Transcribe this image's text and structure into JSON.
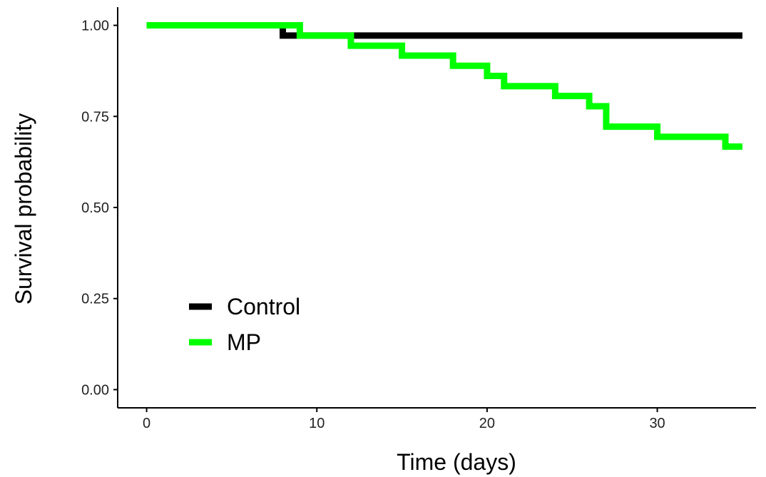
{
  "chart_data": {
    "type": "line",
    "title": "",
    "xlabel": "Time (days)",
    "ylabel": "Survival probability",
    "xlim": [
      -1.7,
      35.8
    ],
    "ylim": [
      -0.05,
      1.05
    ],
    "x_ticks": [
      0,
      10,
      20,
      30
    ],
    "x_tick_labels": [
      "0",
      "10",
      "20",
      "30"
    ],
    "y_ticks": [
      0.0,
      0.25,
      0.5,
      0.75,
      1.0
    ],
    "y_tick_labels": [
      "0.00",
      "0.25",
      "0.50",
      "0.75",
      "1.00"
    ],
    "grid": false,
    "step": true,
    "legend": {
      "position": "bottom-left"
    },
    "series": [
      {
        "name": "Control",
        "color": "#000000",
        "x": [
          0,
          8,
          35
        ],
        "y": [
          1.0,
          0.972,
          0.972
        ]
      },
      {
        "name": "MP",
        "color": "#00ff00",
        "x": [
          0,
          9,
          12,
          15,
          18,
          20,
          21,
          24,
          26,
          27,
          30,
          34,
          35
        ],
        "y": [
          1.0,
          0.972,
          0.944,
          0.917,
          0.889,
          0.861,
          0.833,
          0.806,
          0.778,
          0.722,
          0.694,
          0.667,
          0.667
        ]
      }
    ]
  }
}
